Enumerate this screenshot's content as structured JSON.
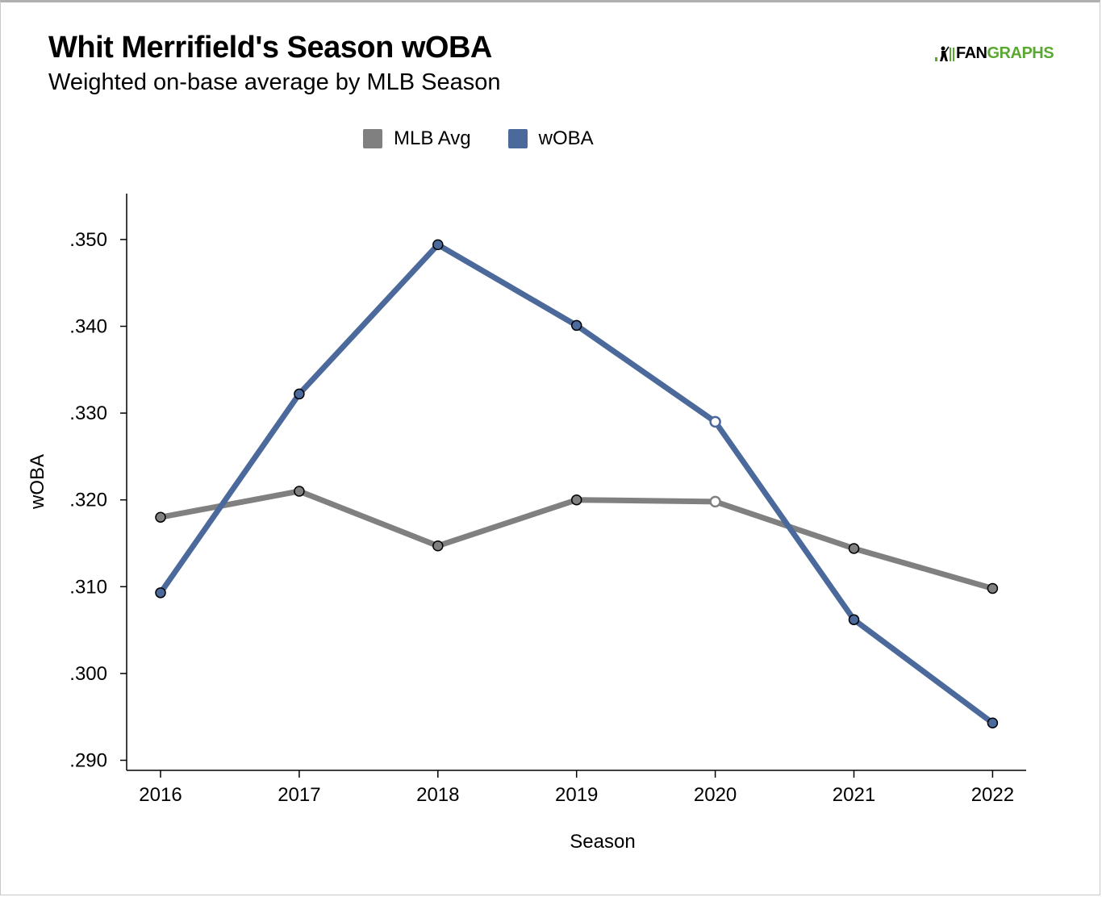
{
  "header": {
    "title": "Whit Merrifield's Season wOBA",
    "subtitle": "Weighted on-base average by MLB Season",
    "logo_prefix": "FAN",
    "logo_suffix": "GRAPHS"
  },
  "colors": {
    "mlb_avg": "#808080",
    "woba": "#4b6a9b",
    "axis": "#000000",
    "logo_green": "#5aa832"
  },
  "chart_data": {
    "type": "line",
    "title": "Whit Merrifield's Season wOBA",
    "subtitle": "Weighted on-base average by MLB Season",
    "xlabel": "Season",
    "ylabel": "wOBA",
    "x": [
      "2016",
      "2017",
      "2018",
      "2019",
      "2020",
      "2021",
      "2022"
    ],
    "ylim": [
      0.2885,
      0.3555
    ],
    "yticks": [
      0.29,
      0.3,
      0.31,
      0.32,
      0.33,
      0.34,
      0.35
    ],
    "ytick_labels": [
      ".290",
      ".300",
      ".310",
      ".320",
      ".330",
      ".340",
      ".350"
    ],
    "legend_position": "top-center",
    "grid": false,
    "series": [
      {
        "name": "MLB Avg",
        "color": "#808080",
        "values": [
          0.318,
          0.321,
          0.3147,
          0.32,
          0.3198,
          0.3144,
          0.3098
        ],
        "hollow_points": [
          "2020"
        ]
      },
      {
        "name": "wOBA",
        "color": "#4b6a9b",
        "values": [
          0.3093,
          0.3322,
          0.3494,
          0.3401,
          0.329,
          0.3062,
          0.2943
        ],
        "hollow_points": [
          "2020"
        ]
      }
    ]
  }
}
